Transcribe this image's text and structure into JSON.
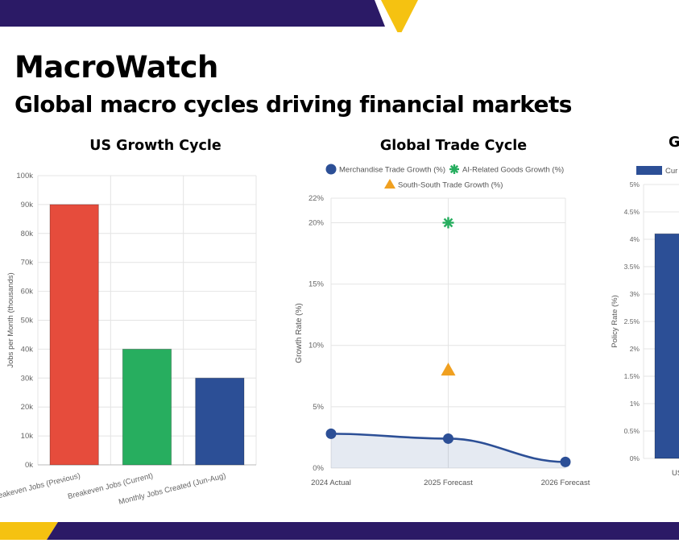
{
  "header": {
    "brand": "MacroWatch",
    "tagline": "Global macro cycles driving financial markets"
  },
  "colors": {
    "navy": "#2b1a66",
    "gold": "#f5c211"
  },
  "chart_data": [
    {
      "type": "bar",
      "title": "US Growth Cycle",
      "ylabel": "Jobs per Month (thousands)",
      "categories": [
        "Breakeven Jobs (Previous)",
        "Breakeven Jobs (Current)",
        "Monthly Jobs Created (Jun-Aug)"
      ],
      "values": [
        90,
        40,
        30
      ],
      "colors": [
        "#e64c3c",
        "#27ae5f",
        "#2c4f96"
      ],
      "ylim": [
        0,
        100
      ],
      "yticks": [
        "0k",
        "10k",
        "20k",
        "30k",
        "40k",
        "50k",
        "60k",
        "70k",
        "80k",
        "90k",
        "100k"
      ],
      "grid": true
    },
    {
      "type": "line",
      "title": "Global Trade Cycle",
      "ylabel": "Growth Rate (%)",
      "categories": [
        "2024 Actual",
        "2025 Forecast",
        "2026 Forecast"
      ],
      "ylim": [
        0,
        22
      ],
      "yticks": [
        {
          "v": 0,
          "label": "0%"
        },
        {
          "v": 5,
          "label": "5%"
        },
        {
          "v": 10,
          "label": "10%"
        },
        {
          "v": 15,
          "label": "15%"
        },
        {
          "v": 20,
          "label": "20%"
        },
        {
          "v": 22,
          "label": "22%"
        }
      ],
      "legend_position": "top",
      "grid": true,
      "series": [
        {
          "name": "Merchandise Trade Growth (%)",
          "marker": "circle",
          "color": "#2c4f96",
          "values": [
            2.8,
            2.4,
            0.5
          ],
          "filled": true
        },
        {
          "name": "AI-Related Goods Growth (%)",
          "marker": "asterisk",
          "color": "#27ae5f",
          "values": [
            null,
            20,
            null
          ]
        },
        {
          "name": "South-South Trade Growth (%)",
          "marker": "triangle",
          "color": "#f0a020",
          "values": [
            null,
            8,
            null
          ]
        }
      ]
    },
    {
      "type": "bar",
      "title": "G",
      "ylabel": "Policy Rate (%)",
      "legend": [
        "Cur"
      ],
      "categories": [
        "US"
      ],
      "values": [
        4.1
      ],
      "colors": [
        "#2c4f96"
      ],
      "ylim": [
        0,
        5
      ],
      "yticks": [
        "0%",
        "0.5%",
        "1%",
        "1.5%",
        "2%",
        "2.5%",
        "3%",
        "3.5%",
        "4%",
        "4.5%",
        "5%"
      ],
      "grid": true
    }
  ]
}
